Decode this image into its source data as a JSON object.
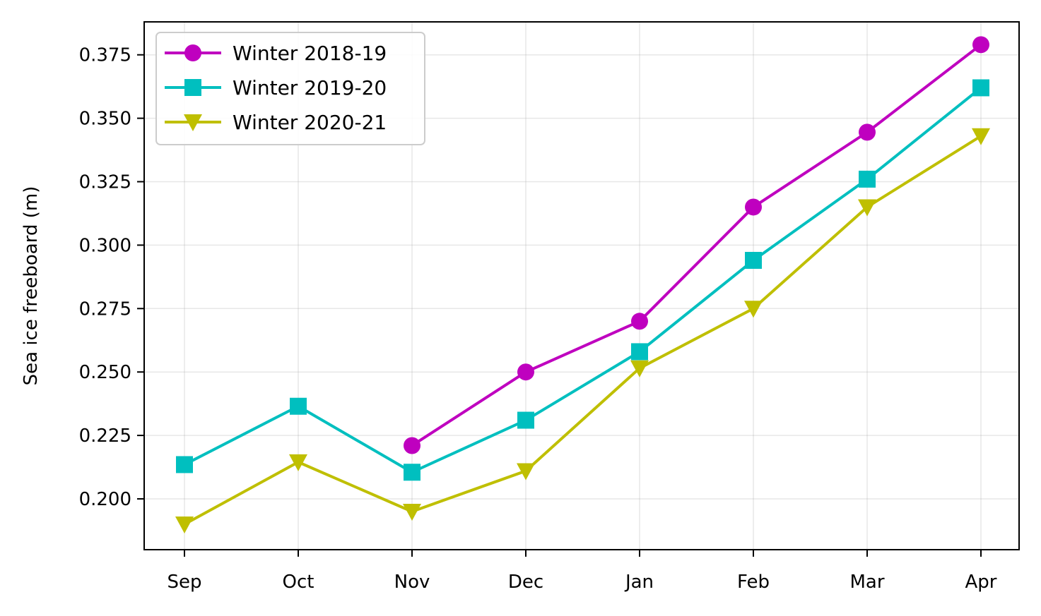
{
  "chart_data": {
    "type": "line",
    "title": "",
    "xlabel": "",
    "ylabel": "Sea ice freeboard (m)",
    "categories": [
      "Sep",
      "Oct",
      "Nov",
      "Dec",
      "Jan",
      "Feb",
      "Mar",
      "Apr"
    ],
    "yticks": [
      0.2,
      0.225,
      0.25,
      0.275,
      0.3,
      0.325,
      0.35,
      0.375
    ],
    "ytick_labels": [
      "0.200",
      "0.225",
      "0.250",
      "0.275",
      "0.300",
      "0.325",
      "0.350",
      "0.375"
    ],
    "ylim": [
      0.18,
      0.388
    ],
    "grid": true,
    "legend_position": "top-left",
    "series": [
      {
        "name": "Winter 2018-19",
        "color": "#bf00bf",
        "marker": "circle",
        "values": [
          null,
          null,
          0.221,
          0.25,
          0.27,
          0.315,
          0.3445,
          0.379
        ]
      },
      {
        "name": "Winter 2019-20",
        "color": "#00bfbf",
        "marker": "square",
        "values": [
          0.2135,
          0.2365,
          0.2105,
          0.231,
          0.258,
          0.294,
          0.326,
          0.362
        ]
      },
      {
        "name": "Winter 2020-21",
        "color": "#bfbf00",
        "marker": "triangle-down",
        "values": [
          0.19,
          0.2145,
          0.195,
          0.211,
          0.2515,
          0.275,
          0.315,
          0.343
        ]
      }
    ]
  }
}
